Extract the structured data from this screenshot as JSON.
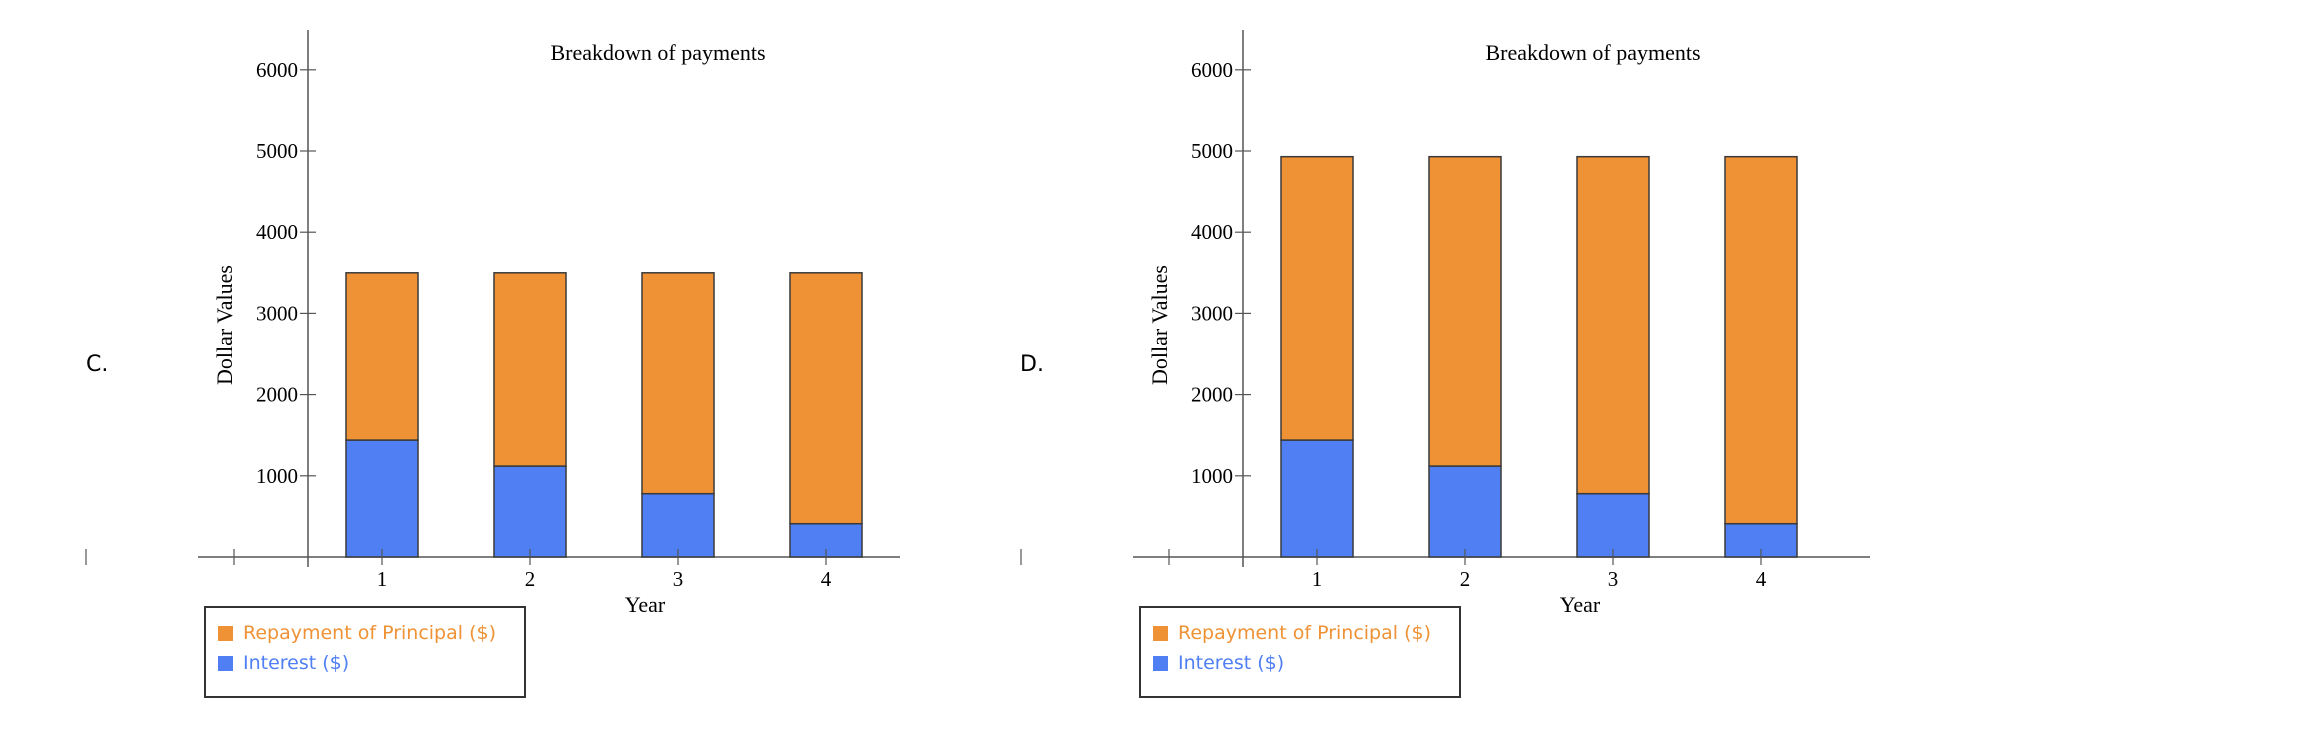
{
  "options": [
    {
      "label": "C."
    },
    {
      "label": "D."
    }
  ],
  "chart_data": [
    {
      "type": "bar",
      "stacked": true,
      "title": "Breakdown of payments",
      "xlabel": "Year",
      "ylabel": "Dollar Values",
      "categories": [
        "1",
        "2",
        "3",
        "4"
      ],
      "yticks": [
        "1000",
        "2000",
        "3000",
        "4000",
        "5000",
        "6000"
      ],
      "xlim": [
        -2,
        5
      ],
      "ylim": [
        -200,
        6500
      ],
      "series": [
        {
          "name": "Interest ($)",
          "color": "#4f7ff3",
          "values": [
            1440,
            1120,
            780,
            410
          ]
        },
        {
          "name": "Repayment of Principal ($)",
          "color": "#ef9236",
          "values": [
            2060,
            2380,
            2720,
            3090
          ]
        }
      ],
      "legend": "bottom-left",
      "grid": false
    },
    {
      "type": "bar",
      "stacked": true,
      "title": "Breakdown of payments",
      "xlabel": "Year",
      "ylabel": "Dollar Values",
      "categories": [
        "1",
        "2",
        "3",
        "4"
      ],
      "yticks": [
        "1000",
        "2000",
        "3000",
        "4000",
        "5000",
        "6000"
      ],
      "xlim": [
        -2,
        5
      ],
      "ylim": [
        -200,
        6500
      ],
      "series": [
        {
          "name": "Interest ($)",
          "color": "#4f7ff3",
          "values": [
            1440,
            1120,
            780,
            410
          ]
        },
        {
          "name": "Repayment of Principal ($)",
          "color": "#ef9236",
          "values": [
            3490,
            3810,
            4150,
            4520
          ]
        }
      ],
      "legend": "bottom-left",
      "grid": false
    }
  ]
}
